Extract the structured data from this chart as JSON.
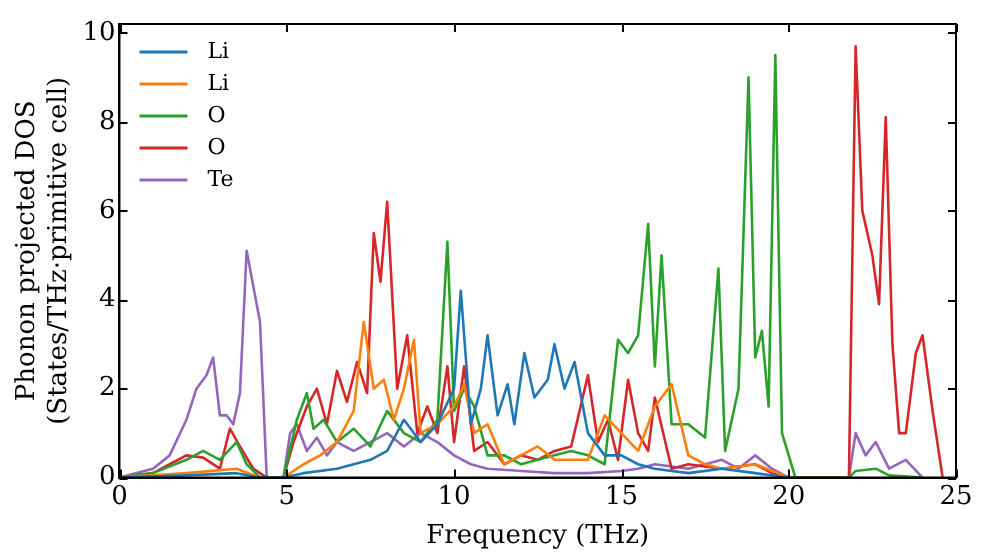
{
  "chart_data": {
    "type": "line",
    "xlabel": "Frequency (THz)",
    "ylabel": "Phonon projected DOS\n(States/THz·primitive cell)",
    "xlim": [
      0,
      25
    ],
    "ylim": [
      0,
      10.2
    ],
    "xticks": [
      0,
      5,
      10,
      15,
      20,
      25
    ],
    "yticks": [
      0,
      2,
      4,
      6,
      8,
      10
    ],
    "grid": false,
    "legend": "top left",
    "marker": "none",
    "line_style": "solid",
    "series": [
      {
        "name": "Li",
        "color": "#1f77b4",
        "x": [
          0,
          2,
          3.5,
          4.2,
          4.9,
          5.5,
          6.5,
          7.5,
          8,
          8.5,
          9,
          9.5,
          10,
          10.2,
          10.5,
          10.8,
          11,
          11.3,
          11.6,
          11.8,
          12.1,
          12.4,
          12.8,
          13,
          13.3,
          13.6,
          14,
          14.5,
          15,
          15.5,
          16,
          17,
          18,
          19,
          20
        ],
        "values": [
          0,
          0.05,
          0.1,
          0,
          0,
          0.1,
          0.2,
          0.4,
          0.6,
          1.3,
          0.8,
          1.2,
          2,
          4.2,
          1.2,
          2,
          3.2,
          1.4,
          2.1,
          1.2,
          2.8,
          1.8,
          2.2,
          3,
          2,
          2.6,
          1,
          0.5,
          0.5,
          0.3,
          0.2,
          0.1,
          0.2,
          0.1,
          0
        ]
      },
      {
        "name": "Li",
        "color": "#ff7f0e",
        "x": [
          0,
          2,
          3.5,
          4.2,
          4.9,
          5.5,
          6,
          6.5,
          7,
          7.3,
          7.6,
          7.9,
          8.2,
          8.5,
          8.8,
          9,
          9.5,
          10,
          10.3,
          10.6,
          11,
          11.5,
          12,
          12.5,
          13,
          14,
          14.5,
          15,
          15.5,
          16,
          16.5,
          17,
          17.5,
          18,
          19,
          20
        ],
        "values": [
          0,
          0.1,
          0.2,
          0,
          0,
          0.3,
          0.5,
          0.8,
          1.5,
          3.5,
          2,
          2.2,
          1.3,
          2,
          3.1,
          1,
          1.2,
          1.6,
          2.1,
          1,
          1.2,
          0.3,
          0.5,
          0.7,
          0.4,
          0.4,
          1.4,
          1,
          0.6,
          1.6,
          2.1,
          0.5,
          0.3,
          0.2,
          0.3,
          0
        ]
      },
      {
        "name": "O",
        "color": "#2ca02c",
        "x": [
          0,
          1,
          2,
          2.5,
          3,
          3.5,
          3.8,
          4.2,
          4.9,
          5.3,
          5.6,
          5.8,
          6.1,
          6.5,
          7,
          7.5,
          8,
          8.5,
          9,
          9.5,
          9.8,
          10,
          10.3,
          10.6,
          11,
          11.5,
          12,
          12.5,
          13,
          13.5,
          14,
          14.5,
          14.9,
          15.2,
          15.5,
          15.8,
          16,
          16.2,
          16.5,
          17,
          17.5,
          17.9,
          18.1,
          18.5,
          18.8,
          19,
          19.2,
          19.4,
          19.6,
          19.8,
          20.2,
          21.8,
          22,
          22.6,
          23,
          24
        ],
        "values": [
          0,
          0.1,
          0.4,
          0.6,
          0.4,
          0.8,
          0.3,
          0,
          0,
          1.3,
          1.9,
          1.1,
          1.3,
          0.8,
          1.1,
          0.7,
          1.5,
          1,
          0.8,
          1.3,
          5.3,
          1.5,
          2,
          1.6,
          0.5,
          0.5,
          0.3,
          0.4,
          0.5,
          0.6,
          0.5,
          0.3,
          3.1,
          2.8,
          3.2,
          5.7,
          2.5,
          5,
          1.2,
          1.2,
          0.9,
          4.7,
          0.6,
          2,
          9,
          2.7,
          3.3,
          1.6,
          9.5,
          1,
          0,
          0,
          0.15,
          0.2,
          0.05,
          0
        ]
      },
      {
        "name": "O",
        "color": "#d62728",
        "x": [
          0,
          1,
          1.5,
          2,
          2.5,
          3,
          3.3,
          3.6,
          4,
          4.4,
          4.9,
          5.2,
          5.6,
          5.9,
          6.2,
          6.5,
          6.8,
          7.1,
          7.4,
          7.6,
          7.8,
          8,
          8.3,
          8.6,
          8.9,
          9.2,
          9.5,
          9.8,
          10,
          10.3,
          10.6,
          11,
          11.5,
          12,
          12.5,
          13,
          13.5,
          14,
          14.3,
          14.6,
          14.9,
          15.2,
          15.5,
          15.8,
          16,
          16.5,
          17,
          18,
          19,
          19.5,
          20,
          21.8,
          22,
          22.2,
          22.5,
          22.7,
          22.9,
          23.1,
          23.3,
          23.5,
          23.8,
          24,
          24.3,
          24.6
        ],
        "values": [
          0,
          0.1,
          0.3,
          0.5,
          0.45,
          0.2,
          1.1,
          0.7,
          0.2,
          0,
          0,
          0.8,
          1.6,
          2,
          1.2,
          2.4,
          1.7,
          2.6,
          1.9,
          5.5,
          4.4,
          6.2,
          2,
          3.2,
          1,
          1.6,
          1,
          2.5,
          0.8,
          2.5,
          0.6,
          0.8,
          0.3,
          0.5,
          0.4,
          0.6,
          0.7,
          2.3,
          0.8,
          1.3,
          0.4,
          2.2,
          1,
          0.6,
          1.8,
          0.2,
          0.3,
          0.2,
          0.3,
          0.1,
          0,
          0,
          9.7,
          6,
          5,
          3.9,
          8.1,
          3,
          1,
          1,
          2.8,
          3.2,
          1.5,
          0
        ]
      },
      {
        "name": "Te",
        "color": "#9467bd",
        "x": [
          0,
          1,
          1.5,
          2,
          2.3,
          2.6,
          2.8,
          3,
          3.2,
          3.4,
          3.6,
          3.8,
          4,
          4.2,
          4.4,
          4.9,
          5.1,
          5.3,
          5.6,
          5.9,
          6.2,
          6.5,
          7,
          7.5,
          8,
          8.5,
          9,
          9.5,
          10,
          10.5,
          11,
          12,
          13,
          14,
          15,
          15.5,
          16,
          17,
          18,
          18.5,
          19,
          19.5,
          20,
          21.8,
          22,
          22.3,
          22.6,
          23,
          23.5,
          24
        ],
        "values": [
          0,
          0.2,
          0.5,
          1.3,
          2,
          2.3,
          2.7,
          1.4,
          1.4,
          1.2,
          1.9,
          5.1,
          4.3,
          3.5,
          0,
          0,
          1,
          1.2,
          0.6,
          0.9,
          0.5,
          0.8,
          0.6,
          0.8,
          1,
          0.7,
          1,
          0.8,
          0.5,
          0.3,
          0.2,
          0.15,
          0.1,
          0.1,
          0.15,
          0.2,
          0.3,
          0.2,
          0.4,
          0.2,
          0.5,
          0.2,
          0,
          0,
          1,
          0.5,
          0.8,
          0.2,
          0.4,
          0
        ]
      }
    ]
  }
}
